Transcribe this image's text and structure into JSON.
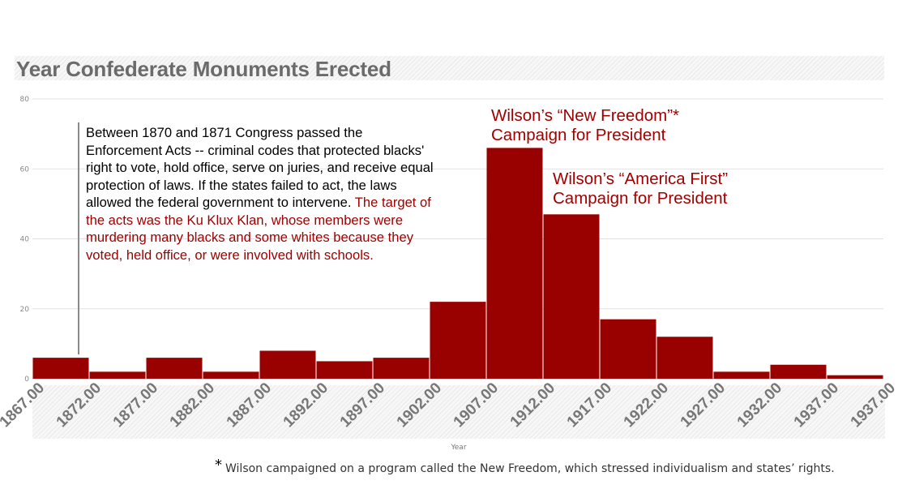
{
  "title": "Year Confederate Monuments Erected",
  "chart_data": {
    "type": "bar",
    "title": "Year Confederate Monuments Erected",
    "xlabel": "Year",
    "ylabel": "",
    "ylim": [
      0,
      80
    ],
    "yticks": [
      "0",
      "20",
      "40",
      "60",
      "80"
    ],
    "xticks": [
      "1867.00",
      "1872.00",
      "1877.00",
      "1882.00",
      "1887.00",
      "1892.00",
      "1897.00",
      "1902.00",
      "1907.00",
      "1912.00",
      "1917.00",
      "1922.00",
      "1927.00",
      "1932.00",
      "1937.00",
      "1937.00"
    ],
    "bins": [
      {
        "start": 1867,
        "end": 1872,
        "value": 6
      },
      {
        "start": 1872,
        "end": 1877,
        "value": 2
      },
      {
        "start": 1877,
        "end": 1882,
        "value": 6
      },
      {
        "start": 1882,
        "end": 1887,
        "value": 2
      },
      {
        "start": 1887,
        "end": 1892,
        "value": 8
      },
      {
        "start": 1892,
        "end": 1897,
        "value": 5
      },
      {
        "start": 1897,
        "end": 1902,
        "value": 6
      },
      {
        "start": 1902,
        "end": 1907,
        "value": 22
      },
      {
        "start": 1907,
        "end": 1912,
        "value": 66
      },
      {
        "start": 1912,
        "end": 1917,
        "value": 47
      },
      {
        "start": 1917,
        "end": 1922,
        "value": 17
      },
      {
        "start": 1922,
        "end": 1927,
        "value": 12
      },
      {
        "start": 1927,
        "end": 1932,
        "value": 2
      },
      {
        "start": 1932,
        "end": 1937,
        "value": 4
      },
      {
        "start": 1937,
        "end": 1942,
        "value": 1
      }
    ],
    "bar_color": "#990000",
    "grid": true
  },
  "annotations": {
    "enforcement_black": "Between 1870 and 1871 Congress passed the Enforcement Acts -- criminal codes that protected blacks' right to vote, hold office, serve on juries, and receive equal protection of laws. If the states failed to act, the laws allowed the federal government to intervene.",
    "enforcement_red": "The target of the acts was the Ku Klux Klan, whose members were murdering many blacks and some whites because they voted, held office, or were involved with schools.",
    "new_freedom_line1": "Wilson’s “New Freedom”*",
    "new_freedom_line2": "Campaign for President",
    "america_first_line1": "Wilson’s “America First”",
    "america_first_line2": "Campaign for President"
  },
  "footnote": {
    "star": "*",
    "text": "Wilson campaigned on a program called the New Freedom, which stressed individualism and states’ rights."
  },
  "colors": {
    "bar": "#990000",
    "annotation_red": "#a00000",
    "title_gray": "#6b6b6b"
  }
}
